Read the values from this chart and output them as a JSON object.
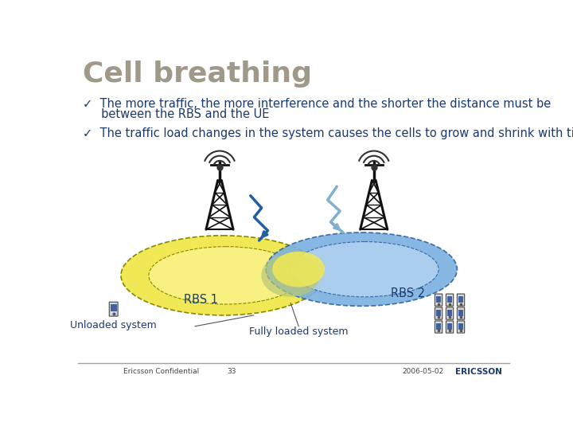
{
  "title": "Cell breathing",
  "title_color": "#a09888",
  "title_fontsize": 26,
  "bullet1_line1": "✓  The more traffic, the more interference and the shorter the distance must be",
  "bullet1_line2": "     between the RBS and the UE",
  "bullet2": "✓  The traffic load changes in the system causes the cells to grow and shrink with time",
  "bullet_color": "#1a3a6e",
  "bullet_fontsize": 10.5,
  "rbs1_label": "RBS 1",
  "rbs2_label": "RBS 2",
  "label_color": "#1a3a6e",
  "unloaded_label": "Unloaded system",
  "loaded_label": "Fully loaded system",
  "footer_left": "Ericsson Confidential",
  "footer_center": "33",
  "footer_right": "2006-05-02",
  "footer_brand": "ERICSSON",
  "footer_color": "#1a3a6e",
  "bg_color": "#ffffff",
  "separator_color": "#a0a0a0",
  "tower_color": "#111111",
  "signal_color": "#333333",
  "bolt_color": "#2060a0",
  "bolt_color2": "#80b0d0",
  "arrow_color": "#2060a0",
  "ell1_outer_fc": "#f0e855",
  "ell1_outer_ec": "#888800",
  "ell1_inner_fc": "#f8f080",
  "ell2_outer_fc": "#7ab0e0",
  "ell2_outer_ec": "#3060a0",
  "ell2_inner_fc": "#b0d0f0",
  "overlap_fc": "#b8c878",
  "yellow_small_fc": "#f0e855"
}
